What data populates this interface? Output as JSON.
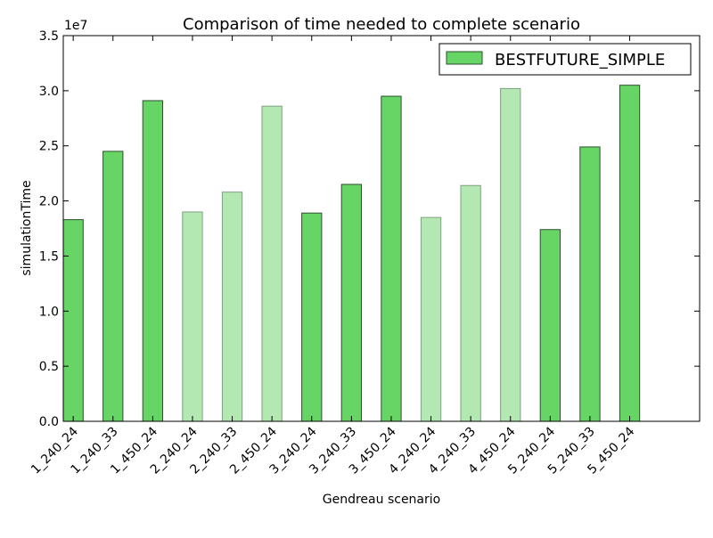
{
  "chart_data": {
    "type": "bar",
    "title": "Comparison of time needed to complete scenario",
    "xlabel": "Gendreau scenario",
    "ylabel": "simulationTime",
    "y_scale_label": "1e7",
    "y_scale": 10000000,
    "ylim": [
      0,
      3.5
    ],
    "yticks": [
      "0.0",
      "0.5",
      "1.0",
      "1.5",
      "2.0",
      "2.5",
      "3.0",
      "3.5"
    ],
    "grid": false,
    "legend_position": "top-right",
    "series": [
      {
        "name": "BESTFUTURE_SIMPLE",
        "color": "#66d566",
        "faded_color": "#b3e8b3",
        "values": [
          1.83,
          2.45,
          2.91,
          1.9,
          2.08,
          2.86,
          1.89,
          2.15,
          2.95,
          1.85,
          2.14,
          3.02,
          1.74,
          2.49,
          3.05
        ],
        "faded": [
          false,
          false,
          false,
          true,
          true,
          true,
          false,
          false,
          false,
          true,
          true,
          true,
          false,
          false,
          false
        ]
      }
    ],
    "categories": [
      "1_240_24",
      "1_240_33",
      "1_450_24",
      "2_240_24",
      "2_240_33",
      "2_450_24",
      "3_240_24",
      "3_240_33",
      "3_450_24",
      "4_240_24",
      "4_240_33",
      "4_450_24",
      "5_240_24",
      "5_240_33",
      "5_450_24"
    ]
  }
}
